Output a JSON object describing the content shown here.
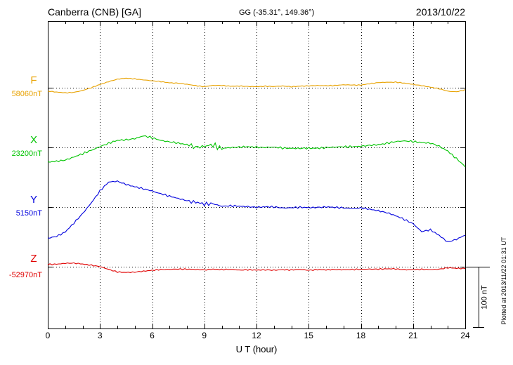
{
  "header": {
    "station": "Canberra (CNB)  [GA]",
    "coords": "GG (-35.31°, 149.36°)",
    "date": "2013/10/22"
  },
  "axis": {
    "xlabel": "U T (hour)",
    "ticks": [
      0,
      3,
      6,
      9,
      12,
      15,
      18,
      21,
      24
    ]
  },
  "scale_bar": {
    "label": "100 nT"
  },
  "footer_note": "Plotted at 2013/11/22 01:31 UT",
  "chart_data": {
    "type": "line",
    "title": "Canberra (CNB) [GA] magnetogram 2013/10/22",
    "xlabel": "U T (hour)",
    "x_range": [
      0,
      24
    ],
    "x_step_hours": 0.5,
    "grid": "dotted vertical every 3 hours, dotted horizontal at each trace baseline",
    "scale_bar_nT": 100,
    "series": [
      {
        "name": "F",
        "baseline_label": "58060nT",
        "baseline_nT": 58060,
        "color": "#e8a200",
        "noise_nT": 0.9,
        "offsets_nT": [
          -6,
          -8,
          -9,
          -8,
          -5,
          0,
          6,
          11,
          15,
          17,
          16,
          14,
          12,
          11,
          9,
          8,
          6,
          4,
          2,
          4,
          4,
          3,
          3,
          2,
          2,
          3,
          2,
          3,
          2,
          3,
          3,
          4,
          4,
          4,
          5,
          5,
          5,
          7,
          9,
          10,
          10,
          8,
          6,
          4,
          1,
          -2,
          -6,
          -7,
          -4
        ]
      },
      {
        "name": "X",
        "baseline_label": "23200nT",
        "baseline_nT": 23200,
        "color": "#00c400",
        "noise_nT": 2.2,
        "noise_burst": {
          "from": 8.2,
          "to": 10.0,
          "factor": 2.8
        },
        "offsets_nT": [
          -27,
          -25,
          -22,
          -17,
          -12,
          -5,
          2,
          7,
          12,
          14,
          16,
          20,
          17,
          13,
          10,
          7,
          5,
          2,
          1,
          3,
          -1,
          0,
          0,
          1,
          1,
          0,
          0,
          -1,
          -1,
          -2,
          -2,
          -1,
          0,
          0,
          1,
          2,
          2,
          3,
          5,
          8,
          10,
          11,
          11,
          9,
          7,
          2,
          -6,
          -20,
          -35
        ]
      },
      {
        "name": "Y",
        "baseline_label": "5150nT",
        "baseline_nT": 5150,
        "color": "#0000dd",
        "noise_nT": 2.0,
        "noise_burst": {
          "from": 8.2,
          "to": 9.6,
          "factor": 2.2
        },
        "offsets_nT": [
          -56,
          -52,
          -44,
          -29,
          -12,
          8,
          29,
          44,
          46,
          41,
          36,
          32,
          29,
          24,
          19,
          15,
          12,
          9,
          4,
          6,
          2,
          2,
          1,
          1,
          0,
          0,
          0,
          -1,
          -1,
          -1,
          -1,
          0,
          0,
          -1,
          -1,
          -2,
          -2,
          -4,
          -6,
          -10,
          -16,
          -22,
          -29,
          -44,
          -41,
          -50,
          -62,
          -58,
          -50
        ]
      },
      {
        "name": "Z",
        "baseline_label": "-52970nT",
        "baseline_nT": -52970,
        "color": "#e00000",
        "noise_nT": 1.3,
        "offsets_nT": [
          4,
          5,
          6,
          6,
          5,
          3,
          0,
          -5,
          -9,
          -10,
          -10,
          -8,
          -6,
          -5,
          -5,
          -4,
          -4,
          -5,
          -6,
          -4,
          -5,
          -5,
          -6,
          -5,
          -6,
          -6,
          -6,
          -5,
          -6,
          -5,
          -6,
          -5,
          -6,
          -5,
          -5,
          -5,
          -5,
          -4,
          -4,
          -4,
          -4,
          -5,
          -5,
          -5,
          -5,
          -4,
          -2,
          -3,
          -3
        ]
      }
    ]
  }
}
